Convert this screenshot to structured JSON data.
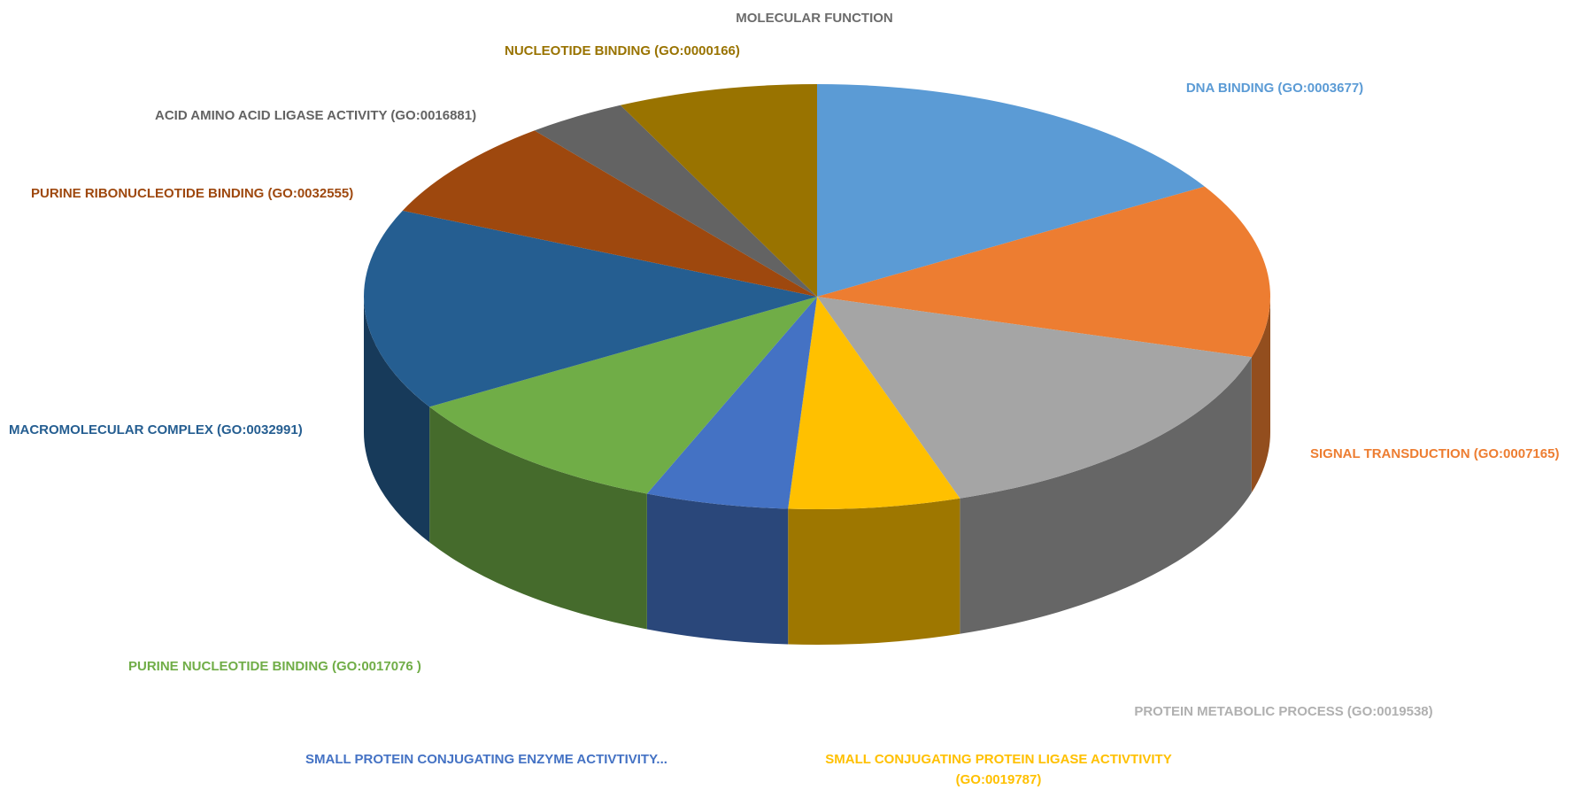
{
  "chart_data": {
    "type": "pie",
    "title": "MOLECULAR FUNCTION",
    "style": "3d",
    "start_angle_deg": 90,
    "direction": "clockwise",
    "legend": "none",
    "slices": [
      {
        "label": "DNA BINDING (GO:0003677)",
        "value": 16,
        "color": "#5b9bd5"
      },
      {
        "label": "SIGNAL TRANSDUCTION (GO:0007165)",
        "value": 13,
        "color": "#ed7d31"
      },
      {
        "label": "PROTEIN METABOLIC PROCESS (GO:0019538)",
        "value": 15,
        "color": "#a5a5a5"
      },
      {
        "label": "SMALL CONJUGATING PROTEIN LIGASE ACTIVTIVITY",
        "label_line2": "(GO:0019787)",
        "value": 6,
        "color": "#ffc000"
      },
      {
        "label": "SMALL PROTEIN CONJUGATING ENZYME ACTIVTIVITY...",
        "value": 5,
        "color": "#4472c4"
      },
      {
        "label": "PURINE NUCLEOTIDE BINDING (GO:0017076 )",
        "value": 10,
        "color": "#70ad47"
      },
      {
        "label": "MACROMOLECULAR COMPLEX (GO:0032991)",
        "value": 15,
        "color": "#255e91"
      },
      {
        "label": "PURINE RIBONUCLEOTIDE BINDING (GO:0032555)",
        "value": 7.5,
        "color": "#9e480e"
      },
      {
        "label": "ACID AMINO ACID LIGASE ACTIVITY (GO:0016881)",
        "value": 3.5,
        "color": "#636363"
      },
      {
        "label": "NUCLEOTIDE BINDING (GO:0000166)",
        "value": 7,
        "color": "#997300"
      }
    ]
  }
}
